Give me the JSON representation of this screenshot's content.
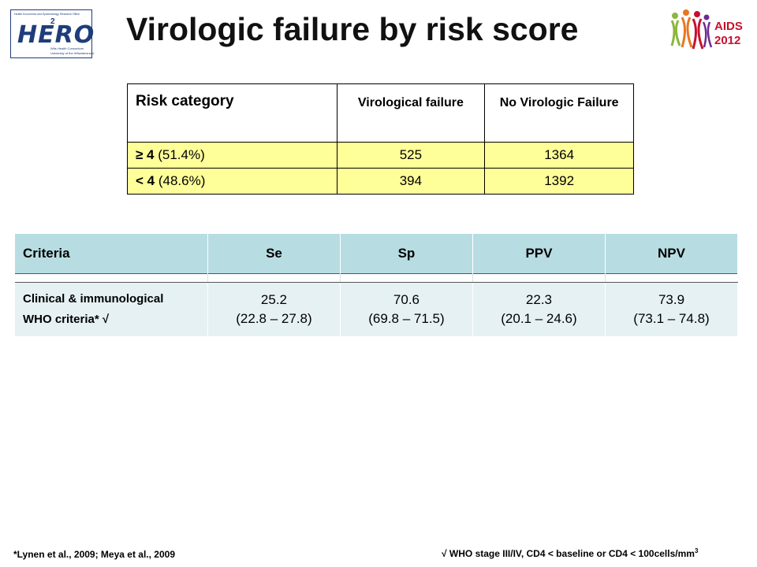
{
  "logos": {
    "hero": {
      "top_line": "Health Economics and Epidemiology Research Office",
      "word": "HERO",
      "superscript": "2",
      "sub1": "Wits Health Consortium",
      "sub2": "University of the Witwatersrand"
    },
    "aids": {
      "line1": "AIDS",
      "line2": "2012",
      "ribbon_colors": [
        "#8db63c",
        "#e87722",
        "#c8102e",
        "#6c2c91"
      ]
    }
  },
  "title": "Virologic failure by risk score",
  "risk_table": {
    "headers": [
      "Risk category",
      "Virological failure",
      "No Virologic Failure"
    ],
    "rows": [
      {
        "category_bold": "≥ 4",
        "category_rest": " (51.4%)",
        "vf": "525",
        "no_vf": "1364"
      },
      {
        "category_bold": "< 4",
        "category_rest": " (48.6%)",
        "vf": "394",
        "no_vf": "1392"
      }
    ],
    "row_color": "#ffff99"
  },
  "criteria_table": {
    "headers": [
      "Criteria",
      "Se",
      "Sp",
      "PPV",
      "NPV"
    ],
    "row": {
      "criteria_line1": "Clinical & immunological",
      "criteria_line2": "WHO criteria* √",
      "se": "25.2",
      "se_ci": "(22.8 – 27.8)",
      "sp": "70.6",
      "sp_ci": "(69.8 – 71.5)",
      "ppv": "22.3",
      "ppv_ci": "(20.1 – 24.6)",
      "npv": "73.9",
      "npv_ci": "(73.1 – 74.8)"
    },
    "header_color": "#b7dde2",
    "row_color": "#e6f1f4"
  },
  "footer": {
    "left": "*Lynen et al., 2009; Meya et al., 2009",
    "right": "√ WHO stage III/IV, CD4 < baseline or CD4 < 100cells/mm",
    "right_sup": "3"
  }
}
